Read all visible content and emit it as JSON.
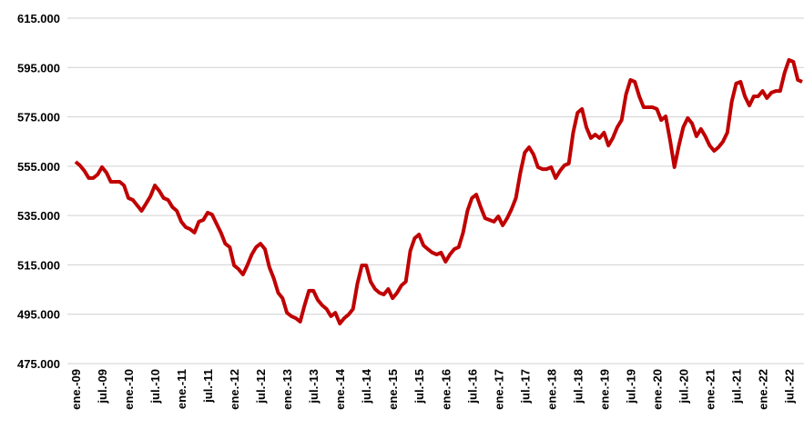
{
  "chart_data": {
    "type": "line",
    "categories": [
      "ene.-09",
      null,
      null,
      null,
      null,
      null,
      "jul.-09",
      null,
      null,
      null,
      null,
      null,
      "ene.-10",
      null,
      null,
      null,
      null,
      null,
      "jul.-10",
      null,
      null,
      null,
      null,
      null,
      "ene.-11",
      null,
      null,
      null,
      null,
      null,
      "jul.-11",
      null,
      null,
      null,
      null,
      null,
      "ene.-12",
      null,
      null,
      null,
      null,
      null,
      "jul.-12",
      null,
      null,
      null,
      null,
      null,
      "ene.-13",
      null,
      null,
      null,
      null,
      null,
      "jul.-13",
      null,
      null,
      null,
      null,
      null,
      "ene.-14",
      null,
      null,
      null,
      null,
      null,
      "jul.-14",
      null,
      null,
      null,
      null,
      null,
      "ene.-15",
      null,
      null,
      null,
      null,
      null,
      "jul.-15",
      null,
      null,
      null,
      null,
      null,
      "ene.-16",
      null,
      null,
      null,
      null,
      null,
      "jul.-16",
      null,
      null,
      null,
      null,
      null,
      "ene.-17",
      null,
      null,
      null,
      null,
      null,
      "jul.-17",
      null,
      null,
      null,
      null,
      null,
      "ene.-18",
      null,
      null,
      null,
      null,
      null,
      "jul.-18",
      null,
      null,
      null,
      null,
      null,
      "ene.-19",
      null,
      null,
      null,
      null,
      null,
      "jul.-19",
      null,
      null,
      null,
      null,
      null,
      "ene.-20",
      null,
      null,
      null,
      null,
      null,
      "jul.-20",
      null,
      null,
      null,
      null,
      null,
      "ene.-21",
      null,
      null,
      null,
      null,
      null,
      "jul.-21",
      null,
      null,
      null,
      null,
      null,
      "ene.-22",
      null,
      null,
      null,
      null,
      null,
      "jul.-22",
      null,
      null,
      null
    ],
    "series": [
      {
        "color": "#c00000",
        "values": [
          556800,
          555300,
          553100,
          550200,
          550200,
          551600,
          554600,
          552400,
          548700,
          548700,
          548700,
          547200,
          542100,
          541300,
          539100,
          536900,
          539800,
          542800,
          547200,
          545000,
          542100,
          541300,
          538400,
          536900,
          532500,
          530300,
          529500,
          528100,
          532500,
          533200,
          536200,
          535400,
          531700,
          528100,
          523600,
          522200,
          514800,
          513300,
          511100,
          514800,
          519200,
          522200,
          523600,
          521400,
          514100,
          509600,
          503700,
          501500,
          495600,
          494200,
          493400,
          492000,
          498600,
          504500,
          504500,
          500800,
          498600,
          497100,
          494200,
          495600,
          491200,
          493400,
          494900,
          497100,
          507400,
          514800,
          514800,
          508200,
          505200,
          503700,
          503000,
          505200,
          501500,
          503700,
          506700,
          508200,
          520700,
          525800,
          527300,
          522900,
          521400,
          520000,
          519200,
          520000,
          516300,
          519200,
          521400,
          522200,
          528100,
          536900,
          542100,
          543500,
          538400,
          533900,
          533200,
          532500,
          534700,
          531000,
          533900,
          537600,
          542100,
          552400,
          560500,
          562700,
          559700,
          554600,
          553800,
          553800,
          554600,
          550200,
          553100,
          555300,
          556100,
          568600,
          576700,
          578200,
          570800,
          566400,
          567800,
          566400,
          568600,
          563400,
          566400,
          570800,
          573700,
          584100,
          590000,
          589200,
          583300,
          578900,
          578900,
          578900,
          578200,
          573700,
          575200,
          565600,
          554600,
          563400,
          570800,
          574500,
          572300,
          567100,
          570100,
          567100,
          563400,
          561200,
          562700,
          564900,
          568600,
          581100,
          588500,
          589200,
          583300,
          579600,
          583300,
          583300,
          585500,
          582600,
          584800,
          585500,
          585500,
          592900,
          598100,
          597300,
          590000,
          589200
        ]
      }
    ],
    "ylim": [
      475000,
      615000
    ],
    "yticks": [
      {
        "value": 475000,
        "label": "475.000"
      },
      {
        "value": 495000,
        "label": "495.000"
      },
      {
        "value": 515000,
        "label": "515.000"
      },
      {
        "value": 535000,
        "label": "535.000"
      },
      {
        "value": 555000,
        "label": "555.000"
      },
      {
        "value": 575000,
        "label": "575.000"
      },
      {
        "value": 595000,
        "label": "595.000"
      },
      {
        "value": 615000,
        "label": "615.000"
      }
    ],
    "grid": true
  }
}
